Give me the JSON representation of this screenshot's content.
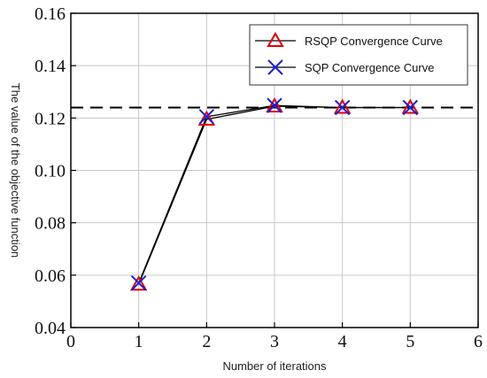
{
  "chart_data": {
    "type": "line",
    "title": "",
    "xlabel": "Number of iterations",
    "ylabel": "The value of the objective function",
    "xlim": [
      0,
      6
    ],
    "ylim": [
      0.04,
      0.16
    ],
    "xticks": [
      "0",
      "1",
      "2",
      "3",
      "4",
      "5",
      "6"
    ],
    "yticks": [
      "0.04",
      "0.06",
      "0.08",
      "0.10",
      "0.12",
      "0.14",
      "0.16"
    ],
    "grid": true,
    "legend_position": "top-right",
    "series": [
      {
        "name": "RSQP Convergence Curve",
        "marker": "triangle",
        "color": "#e00000",
        "x": [
          1,
          2,
          3,
          4,
          5
        ],
        "y": [
          0.0565,
          0.1195,
          0.1245,
          0.124,
          0.124
        ]
      },
      {
        "name": "SQP Convergence Curve",
        "marker": "cross",
        "color": "#1f1fd6",
        "x": [
          1,
          2,
          3,
          4,
          5
        ],
        "y": [
          0.057,
          0.1205,
          0.1248,
          0.124,
          0.124
        ]
      }
    ],
    "reference_line": {
      "y": 0.124,
      "style": "dashed"
    }
  }
}
